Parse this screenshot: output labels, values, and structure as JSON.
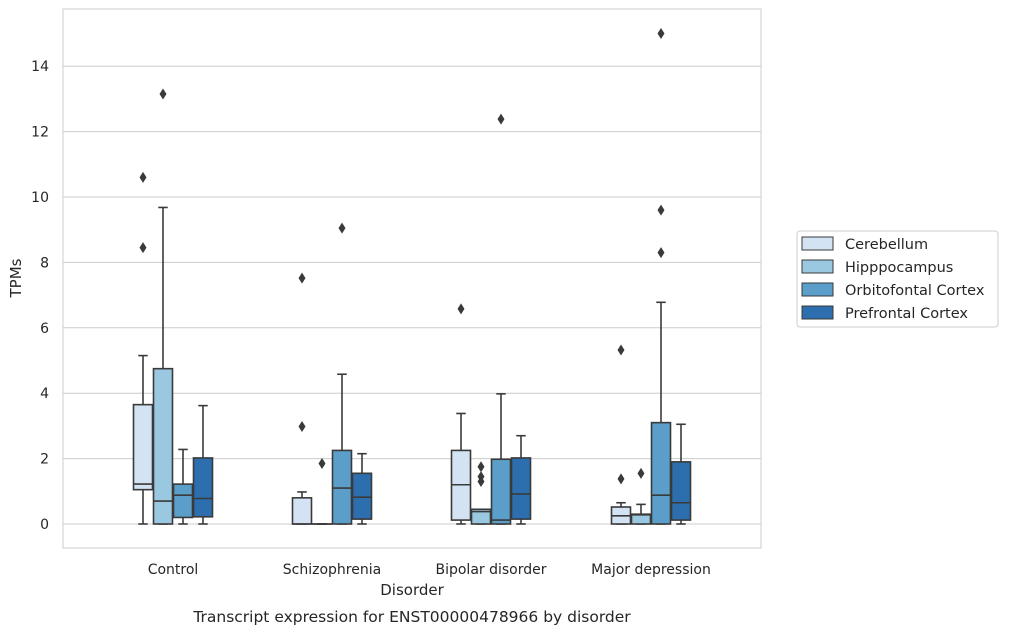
{
  "chart_data": {
    "type": "box",
    "caption": "Transcript expression for ENST00000478966 by disorder",
    "xlabel": "Disorder",
    "ylabel": "TPMs",
    "ylim": [
      -0.7,
      15.8
    ],
    "yticks": [
      "0",
      "2",
      "4",
      "6",
      "8",
      "10",
      "12",
      "14"
    ],
    "grid": "horizontal",
    "legend_position": "right",
    "categories": [
      "Control",
      "Schizophrenia",
      "Bipolar disorder",
      "Major depression"
    ],
    "series": [
      {
        "name": "Cerebellum",
        "color": "#d3e3f3",
        "boxes": [
          {
            "whislo": 0,
            "q1": 1.05,
            "med": 1.22,
            "q3": 3.65,
            "whishi": 5.15,
            "fliers": [
              8.45,
              10.6
            ]
          },
          {
            "whislo": 0,
            "q1": 0,
            "med": 0,
            "q3": 0.8,
            "whishi": 0.98,
            "fliers": [
              2.98,
              7.52
            ]
          },
          {
            "whislo": 0,
            "q1": 0.12,
            "med": 1.2,
            "q3": 2.25,
            "whishi": 3.38,
            "fliers": [
              6.58
            ]
          },
          {
            "whislo": 0,
            "q1": 0,
            "med": 0.25,
            "q3": 0.52,
            "whishi": 0.65,
            "fliers": [
              1.38,
              5.32
            ]
          }
        ]
      },
      {
        "name": "Hipppocampus",
        "color": "#9ac8e0",
        "boxes": [
          {
            "whislo": 0,
            "q1": 0,
            "med": 0.7,
            "q3": 4.75,
            "whishi": 9.68,
            "fliers": [
              13.15
            ]
          },
          {
            "whislo": 0,
            "q1": 0,
            "med": 0,
            "q3": 0,
            "whishi": 0,
            "fliers": [
              1.85
            ]
          },
          {
            "whislo": 0,
            "q1": 0,
            "med": 0.38,
            "q3": 0.45,
            "whishi": 0.45,
            "fliers": [
              1.3,
              1.45,
              1.75
            ]
          },
          {
            "whislo": 0,
            "q1": 0,
            "med": 0.28,
            "q3": 0.3,
            "whishi": 0.6,
            "fliers": [
              1.55
            ]
          }
        ]
      },
      {
        "name": "Orbitofontal Cortex",
        "color": "#5a9ec9",
        "boxes": [
          {
            "whislo": 0,
            "q1": 0.2,
            "med": 0.88,
            "q3": 1.22,
            "whishi": 2.28,
            "fliers": []
          },
          {
            "whislo": 0,
            "q1": 0,
            "med": 1.1,
            "q3": 2.25,
            "whishi": 4.58,
            "fliers": [
              9.05
            ]
          },
          {
            "whislo": 0,
            "q1": 0,
            "med": 0.12,
            "q3": 1.98,
            "whishi": 3.98,
            "fliers": [
              12.38
            ]
          },
          {
            "whislo": 0,
            "q1": 0,
            "med": 0.88,
            "q3": 3.1,
            "whishi": 6.78,
            "fliers": [
              8.3,
              9.6,
              15.0
            ]
          }
        ]
      },
      {
        "name": "Prefrontal Cortex",
        "color": "#2d6fae",
        "boxes": [
          {
            "whislo": 0,
            "q1": 0.22,
            "med": 0.78,
            "q3": 2.02,
            "whishi": 3.62,
            "fliers": []
          },
          {
            "whislo": 0,
            "q1": 0.15,
            "med": 0.82,
            "q3": 1.55,
            "whishi": 2.15,
            "fliers": []
          },
          {
            "whislo": 0,
            "q1": 0.15,
            "med": 0.92,
            "q3": 2.02,
            "whishi": 2.7,
            "fliers": []
          },
          {
            "whislo": 0,
            "q1": 0.12,
            "med": 0.65,
            "q3": 1.9,
            "whishi": 3.05,
            "fliers": []
          }
        ]
      }
    ]
  },
  "colors": {
    "frame": "#cccccc",
    "grid": "#cccccc",
    "outline": "#3a3a3a",
    "text": "#262626"
  }
}
